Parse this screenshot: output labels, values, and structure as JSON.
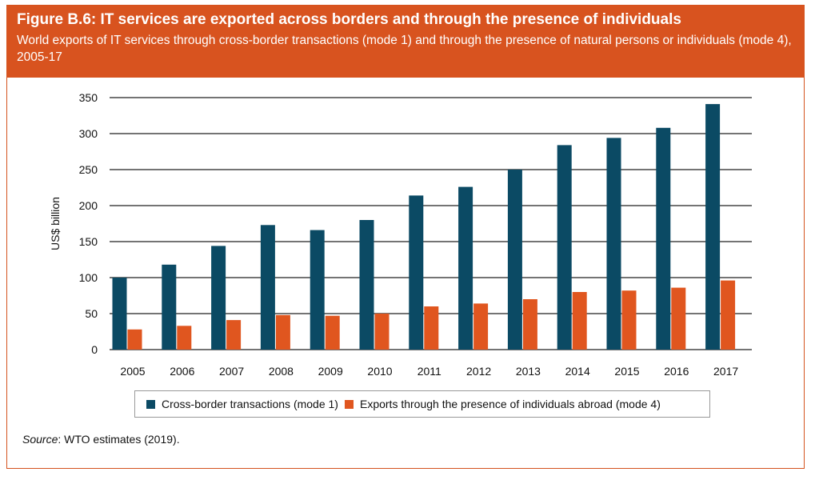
{
  "header": {
    "title": "Figure B.6: IT services are exported across borders and through the presence of individuals",
    "subtitle": "World exports of IT services through cross-border transactions (mode 1) and through the presence of natural persons or individuals (mode 4), 2005-17"
  },
  "source": {
    "label": "Source",
    "text": ": WTO estimates (2019)."
  },
  "colors": {
    "banner": "#d8531f",
    "mode1": "#0b4a64",
    "mode4": "#e0561f"
  },
  "chart_data": {
    "type": "bar",
    "ylabel": "US$ billion",
    "xlabel": "",
    "ylim": [
      0,
      350
    ],
    "yticks": [
      0,
      50,
      100,
      150,
      200,
      250,
      300,
      350
    ],
    "grid": true,
    "legend_position": "bottom",
    "categories": [
      "2005",
      "2006",
      "2007",
      "2008",
      "2009",
      "2010",
      "2011",
      "2012",
      "2013",
      "2014",
      "2015",
      "2016",
      "2017"
    ],
    "series": [
      {
        "name": "Cross-border transactions (mode 1)",
        "values": [
          100,
          118,
          144,
          173,
          166,
          180,
          214,
          226,
          250,
          284,
          294,
          308,
          341
        ]
      },
      {
        "name": "Exports through the presence of individuals abroad (mode 4)",
        "values": [
          28,
          33,
          41,
          48,
          47,
          50,
          60,
          64,
          70,
          80,
          82,
          86,
          96
        ]
      }
    ]
  }
}
